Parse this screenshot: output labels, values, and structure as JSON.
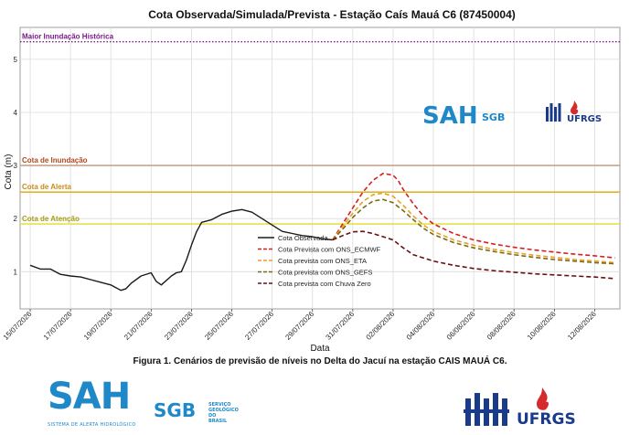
{
  "chart_data": {
    "type": "line",
    "title": "Cota Observada/Simulada/Prevista - Estação Caís Mauá C6 (87450004)",
    "xlabel": "Data",
    "ylabel": "Cota (m)",
    "ylim": [
      0.3,
      5.6
    ],
    "xlim": [
      "2026-07-14T12:00",
      "2026-08-13T06:00"
    ],
    "yticks": [
      "1",
      "2",
      "3",
      "4",
      "5"
    ],
    "xticks": [
      "15/07/2026",
      "17/07/2026",
      "19/07/2026",
      "21/07/2026",
      "23/07/2026",
      "25/07/2026",
      "27/07/2026",
      "29/07/2026",
      "31/07/2026",
      "02/08/2026",
      "04/08/2026",
      "06/08/2026",
      "08/08/2026",
      "10/08/2026",
      "12/08/2026"
    ],
    "grid": true,
    "legend_position": "center",
    "thresholds": [
      {
        "name": "Maior Inundação Histórica",
        "value": 5.33,
        "color": "#7a1a8a",
        "style": "dotted",
        "label_color": "#7a1a8a"
      },
      {
        "name": "Cota de Inundação",
        "value": 3.0,
        "color": "#c8a38e",
        "style": "solid",
        "label_color": "#b0481e"
      },
      {
        "name": "Cota de Alerta",
        "value": 2.5,
        "color": "#e3b42b",
        "style": "solid",
        "label_color": "#c98a14"
      },
      {
        "name": "Cota de Atenção",
        "value": 1.9,
        "color": "#e8e04a",
        "style": "solid",
        "label_color": "#a8a018"
      }
    ],
    "series": [
      {
        "name": "Cota Observada",
        "color": "#1a1a1a",
        "style": "solid",
        "x": [
          "2026-07-15T00:00",
          "2026-07-15T12:00",
          "2026-07-16T00:00",
          "2026-07-16T12:00",
          "2026-07-17T00:00",
          "2026-07-17T12:00",
          "2026-07-18T00:00",
          "2026-07-18T12:00",
          "2026-07-19T00:00",
          "2026-07-19T12:00",
          "2026-07-19T18:00",
          "2026-07-20T00:00",
          "2026-07-20T12:00",
          "2026-07-21T00:00",
          "2026-07-21T06:00",
          "2026-07-21T12:00",
          "2026-07-22T00:00",
          "2026-07-22T06:00",
          "2026-07-22T12:00",
          "2026-07-22T18:00",
          "2026-07-23T00:00",
          "2026-07-23T06:00",
          "2026-07-23T12:00",
          "2026-07-24T00:00",
          "2026-07-24T12:00",
          "2026-07-25T00:00",
          "2026-07-25T12:00",
          "2026-07-26T00:00",
          "2026-07-26T12:00",
          "2026-07-27T00:00",
          "2026-07-27T12:00",
          "2026-07-28T00:00",
          "2026-07-28T12:00",
          "2026-07-29T00:00",
          "2026-07-29T12:00",
          "2026-07-30T00:00"
        ],
        "y": [
          1.12,
          1.05,
          1.05,
          0.95,
          0.92,
          0.9,
          0.85,
          0.8,
          0.75,
          0.65,
          0.68,
          0.78,
          0.92,
          0.98,
          0.82,
          0.75,
          0.92,
          0.98,
          1.0,
          1.22,
          1.5,
          1.75,
          1.93,
          1.98,
          2.08,
          2.14,
          2.17,
          2.12,
          2.0,
          1.88,
          1.76,
          1.72,
          1.68,
          1.66,
          1.62,
          1.6
        ]
      },
      {
        "name": "Cota Prevista com ONS_ECMWF",
        "color": "#d42020",
        "style": "dashed",
        "x": [
          "2026-07-30T00:00",
          "2026-07-30T12:00",
          "2026-07-31T00:00",
          "2026-07-31T12:00",
          "2026-08-01T00:00",
          "2026-08-01T12:00",
          "2026-08-02T00:00",
          "2026-08-02T06:00",
          "2026-08-02T12:00",
          "2026-08-03T00:00",
          "2026-08-03T12:00",
          "2026-08-04T00:00",
          "2026-08-05T00:00",
          "2026-08-06T00:00",
          "2026-08-07T00:00",
          "2026-08-08T00:00",
          "2026-08-09T00:00",
          "2026-08-10T00:00",
          "2026-08-11T00:00",
          "2026-08-12T00:00",
          "2026-08-13T00:00"
        ],
        "y": [
          1.6,
          1.9,
          2.2,
          2.5,
          2.72,
          2.85,
          2.82,
          2.72,
          2.55,
          2.28,
          2.05,
          1.9,
          1.72,
          1.6,
          1.52,
          1.46,
          1.41,
          1.37,
          1.33,
          1.3,
          1.26
        ]
      },
      {
        "name": "Cota prevista com ONS_ETA",
        "color": "#e8a020",
        "style": "dashed",
        "x": [
          "2026-07-30T00:00",
          "2026-07-30T12:00",
          "2026-07-31T00:00",
          "2026-07-31T12:00",
          "2026-08-01T00:00",
          "2026-08-01T12:00",
          "2026-08-02T00:00",
          "2026-08-02T12:00",
          "2026-08-03T00:00",
          "2026-08-03T12:00",
          "2026-08-04T00:00",
          "2026-08-05T00:00",
          "2026-08-06T00:00",
          "2026-08-07T00:00",
          "2026-08-08T00:00",
          "2026-08-09T00:00",
          "2026-08-10T00:00",
          "2026-08-11T00:00",
          "2026-08-12T00:00",
          "2026-08-13T00:00"
        ],
        "y": [
          1.6,
          1.85,
          2.1,
          2.32,
          2.45,
          2.48,
          2.42,
          2.25,
          2.05,
          1.88,
          1.76,
          1.6,
          1.5,
          1.42,
          1.36,
          1.31,
          1.27,
          1.23,
          1.2,
          1.17
        ]
      },
      {
        "name": "Cota prevista com ONS_GEFS",
        "color": "#7a6a10",
        "style": "dashed",
        "x": [
          "2026-07-30T00:00",
          "2026-07-30T12:00",
          "2026-07-31T00:00",
          "2026-07-31T12:00",
          "2026-08-01T00:00",
          "2026-08-01T12:00",
          "2026-08-02T00:00",
          "2026-08-02T12:00",
          "2026-08-03T00:00",
          "2026-08-03T12:00",
          "2026-08-04T00:00",
          "2026-08-05T00:00",
          "2026-08-06T00:00",
          "2026-08-07T00:00",
          "2026-08-08T00:00",
          "2026-08-09T00:00",
          "2026-08-10T00:00",
          "2026-08-11T00:00",
          "2026-08-12T00:00",
          "2026-08-13T00:00"
        ],
        "y": [
          1.6,
          1.8,
          2.02,
          2.2,
          2.33,
          2.36,
          2.3,
          2.15,
          1.98,
          1.82,
          1.7,
          1.55,
          1.45,
          1.38,
          1.32,
          1.27,
          1.23,
          1.2,
          1.17,
          1.15
        ]
      },
      {
        "name": "Cota prevista com Chuva Zero",
        "color": "#6a1010",
        "style": "dashed",
        "x": [
          "2026-07-30T00:00",
          "2026-07-30T12:00",
          "2026-07-31T00:00",
          "2026-07-31T12:00",
          "2026-08-01T00:00",
          "2026-08-01T12:00",
          "2026-08-02T00:00",
          "2026-08-02T12:00",
          "2026-08-03T00:00",
          "2026-08-04T00:00",
          "2026-08-05T00:00",
          "2026-08-06T00:00",
          "2026-08-07T00:00",
          "2026-08-08T00:00",
          "2026-08-09T00:00",
          "2026-08-10T00:00",
          "2026-08-11T00:00",
          "2026-08-12T00:00",
          "2026-08-13T00:00"
        ],
        "y": [
          1.6,
          1.68,
          1.75,
          1.76,
          1.72,
          1.66,
          1.6,
          1.45,
          1.32,
          1.2,
          1.12,
          1.06,
          1.02,
          0.99,
          0.96,
          0.94,
          0.92,
          0.9,
          0.87
        ]
      }
    ]
  },
  "chart_logos": {
    "sah": "SAH",
    "sgb": "SGB",
    "ufrgs": "UFRGS"
  },
  "caption": "Figura 1. Cenários de previsão de níveis no Delta do Jacuí na estação CAIS MAUÁ C6.",
  "logos": {
    "sah": "SAH",
    "sah_sub": "SISTEMA DE ALERTA HIDROLÓGICO",
    "sgb": "SGB",
    "sgb_sub": "SERVIÇO GEOLÓGICO DO BRASIL",
    "ufrgs": "UFRGS"
  },
  "colors": {
    "sah_blue": "#1e88c8",
    "sgb_green": "#3fa535",
    "ufrgs_blue": "#1a3a8c",
    "ufrgs_red": "#d62b2b"
  }
}
